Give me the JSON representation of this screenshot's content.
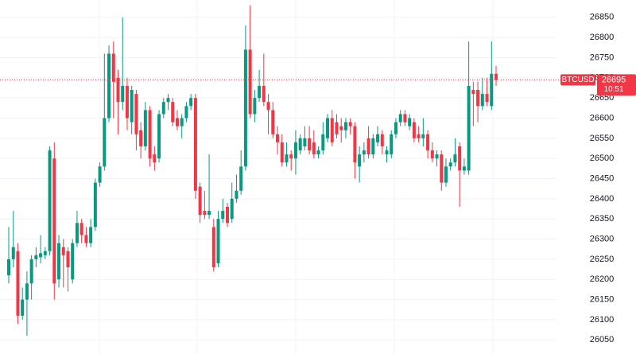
{
  "chart_data": {
    "type": "candlestick",
    "symbol": "BTCUSD",
    "last_price": 26695,
    "countdown": "10:51",
    "up_color": "#089981",
    "down_color": "#f23645",
    "grid": true,
    "ylim": [
      26015,
      26893
    ],
    "yticks": [
      26050,
      26100,
      26150,
      26200,
      26250,
      26300,
      26350,
      26400,
      26450,
      26500,
      26550,
      26600,
      26650,
      26700,
      26750,
      26800,
      26850
    ],
    "open": [
      26210,
      26250,
      26270,
      26110,
      26150,
      26190,
      26250,
      26255,
      26260,
      26270,
      26500,
      26200,
      26280,
      26270,
      26200,
      26290,
      26340,
      26310,
      26290,
      26330,
      26440,
      26480,
      26600,
      26760,
      26700,
      26640,
      26680,
      26590,
      26660,
      26570,
      26530,
      26620,
      26510,
      26500,
      26610,
      26640,
      26640,
      26600,
      26580,
      26600,
      26630,
      26650,
      26430,
      26370,
      26360,
      26330,
      26240,
      26350,
      26380,
      26350,
      26400,
      26420,
      26480,
      26770,
      26610,
      26650,
      26680,
      26640,
      26620,
      26560,
      26540,
      26490,
      26510,
      26500,
      26520,
      26530,
      26550,
      26540,
      26510,
      26520,
      26550,
      26600,
      26590,
      26580,
      26570,
      26590,
      26580,
      26480,
      26510,
      26550,
      26510,
      26540,
      26560,
      26510,
      26510,
      26560,
      26590,
      26610,
      26580,
      26590,
      26560,
      26550,
      26560,
      26520,
      26500,
      26510,
      26440,
      26480,
      26490,
      26530,
      26470,
      26470,
      26670,
      26670,
      26630,
      26660,
      26630,
      26710
    ],
    "high": [
      26330,
      26370,
      26290,
      26180,
      26220,
      26260,
      26280,
      26310,
      26280,
      26530,
      26540,
      26310,
      26300,
      26280,
      26300,
      26370,
      26350,
      26330,
      26350,
      26450,
      26490,
      26760,
      26780,
      26790,
      26720,
      26850,
      26700,
      26680,
      26670,
      26590,
      26640,
      26630,
      26530,
      26620,
      26650,
      26660,
      26650,
      26620,
      26610,
      26640,
      26660,
      26660,
      26440,
      26420,
      26510,
      26350,
      26370,
      26400,
      26390,
      26440,
      26460,
      26520,
      26830,
      26880,
      26670,
      26720,
      26760,
      26660,
      26640,
      26580,
      26560,
      26540,
      26520,
      26570,
      26560,
      26580,
      26580,
      26570,
      26530,
      26590,
      26610,
      26620,
      26610,
      26600,
      26600,
      26600,
      26590,
      26530,
      26540,
      26580,
      26560,
      26580,
      26570,
      26530,
      26570,
      26600,
      26620,
      26620,
      26610,
      26600,
      26580,
      26600,
      26570,
      26540,
      26520,
      26520,
      26500,
      26500,
      26550,
      26540,
      26500,
      26790,
      26690,
      26690,
      26700,
      26700,
      26790,
      26730
    ],
    "low": [
      26190,
      26230,
      26090,
      26100,
      26060,
      26150,
      26230,
      26240,
      26250,
      26260,
      26150,
      26180,
      26180,
      26170,
      26190,
      26280,
      26290,
      26280,
      26280,
      26320,
      26430,
      26470,
      26590,
      26600,
      26560,
      26620,
      26570,
      26560,
      26520,
      26500,
      26520,
      26480,
      26470,
      26490,
      26600,
      26620,
      26580,
      26570,
      26550,
      26590,
      26620,
      26400,
      26340,
      26350,
      26350,
      26220,
      26230,
      26340,
      26330,
      26340,
      26390,
      26410,
      26470,
      26600,
      26590,
      26640,
      26630,
      26560,
      26550,
      26510,
      26480,
      26480,
      26470,
      26460,
      26510,
      26520,
      26510,
      26500,
      26500,
      26510,
      26540,
      26530,
      26550,
      26540,
      26550,
      26560,
      26450,
      26440,
      26490,
      26500,
      26500,
      26530,
      26510,
      26490,
      26500,
      26550,
      26580,
      26580,
      26570,
      26540,
      26540,
      26530,
      26500,
      26490,
      26480,
      26420,
      26430,
      26470,
      26480,
      26380,
      26460,
      26460,
      26580,
      26590,
      26620,
      26630,
      26620,
      26680
    ],
    "close": [
      26250,
      26280,
      26110,
      26150,
      26190,
      26250,
      26260,
      26265,
      26270,
      26520,
      26190,
      26290,
      26260,
      26230,
      26290,
      26340,
      26310,
      26290,
      26330,
      26440,
      26480,
      26600,
      26760,
      26690,
      26640,
      26680,
      26600,
      26670,
      26560,
      26530,
      26620,
      26500,
      26490,
      26610,
      26640,
      26650,
      26590,
      26580,
      26600,
      26630,
      26650,
      26420,
      26360,
      26360,
      26370,
      26230,
      26350,
      26370,
      26340,
      26400,
      26420,
      26480,
      26770,
      26610,
      26650,
      26680,
      26640,
      26620,
      26560,
      26540,
      26490,
      26510,
      26500,
      26540,
      26550,
      26550,
      26520,
      26510,
      26520,
      26560,
      26600,
      26540,
      26560,
      26570,
      26590,
      26580,
      26490,
      26510,
      26520,
      26510,
      26550,
      26560,
      26530,
      26520,
      26560,
      26590,
      26610,
      26590,
      26600,
      26550,
      26550,
      26560,
      26520,
      26500,
      26510,
      26440,
      26480,
      26490,
      26510,
      26470,
      26480,
      26680,
      26660,
      26630,
      26660,
      26640,
      26710,
      26695
    ]
  }
}
